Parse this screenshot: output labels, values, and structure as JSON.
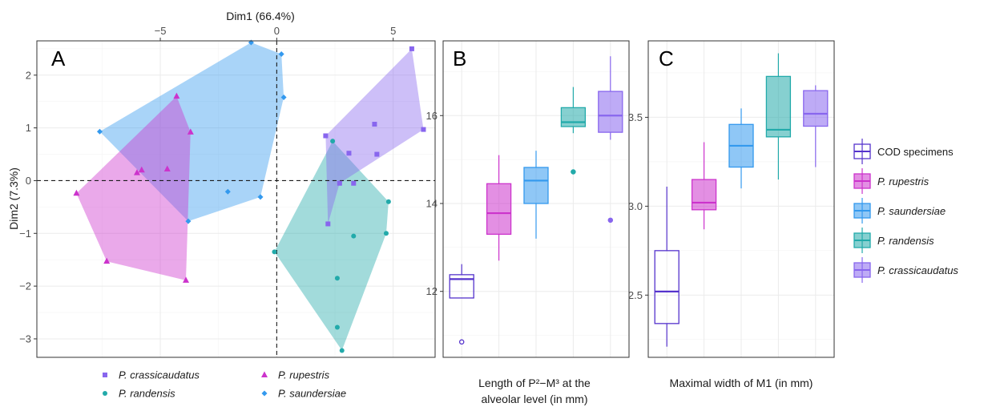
{
  "colors": {
    "cod": "#5533cc",
    "rupestris": "#cc33cc",
    "saundersiae": "#3399ee",
    "randensis": "#22aaaa",
    "crassicaudatus": "#8866ee"
  },
  "chart_data": [
    {
      "panel": "A",
      "type": "scatter",
      "xlabel": "Dim1 (66.4%)",
      "ylabel": "Dim2 (7.3%)",
      "xlim": [
        -10.3,
        6.8
      ],
      "ylim": [
        -3.35,
        2.65
      ],
      "xticks": [
        -5,
        0,
        5
      ],
      "xtick_labels": [
        "−5",
        "0",
        "5"
      ],
      "yticks": [
        2,
        1,
        0,
        -1,
        -2,
        -3
      ],
      "ytick_labels": [
        "2",
        "1",
        "0",
        "−1",
        "−2",
        "−3"
      ],
      "grid": true,
      "reference_lines": [
        0,
        0
      ],
      "legend_position": "bottom",
      "legend_order": [
        "crassicaudatus",
        "rupestris",
        "randensis",
        "saundersiae"
      ],
      "series": [
        {
          "key": "saundersiae",
          "name": "P. saundersiae",
          "marker": "diamond",
          "points": [
            [
              -7.6,
              0.93
            ],
            [
              -1.1,
              2.62
            ],
            [
              0.2,
              2.4
            ],
            [
              0.3,
              1.58
            ],
            [
              -2.1,
              -0.21
            ],
            [
              -0.7,
              -0.31
            ],
            [
              -3.8,
              -0.77
            ]
          ],
          "hull": [
            [
              -7.6,
              0.93
            ],
            [
              -1.1,
              2.62
            ],
            [
              0.2,
              2.4
            ],
            [
              0.3,
              1.58
            ],
            [
              -0.7,
              -0.31
            ],
            [
              -3.8,
              -0.77
            ]
          ]
        },
        {
          "key": "rupestris",
          "name": "P. rupestris",
          "marker": "triangle",
          "points": [
            [
              -4.3,
              1.6
            ],
            [
              -3.7,
              0.92
            ],
            [
              -8.6,
              -0.24
            ],
            [
              -7.3,
              -1.53
            ],
            [
              -3.9,
              -1.89
            ],
            [
              -6.0,
              0.15
            ],
            [
              -5.8,
              0.2
            ],
            [
              -4.7,
              0.22
            ]
          ],
          "hull": [
            [
              -4.3,
              1.6
            ],
            [
              -3.7,
              0.92
            ],
            [
              -3.9,
              -1.89
            ],
            [
              -7.3,
              -1.53
            ],
            [
              -8.6,
              -0.24
            ]
          ]
        },
        {
          "key": "randensis",
          "name": "P. randensis",
          "marker": "circle",
          "points": [
            [
              2.4,
              0.75
            ],
            [
              4.8,
              -0.4
            ],
            [
              4.7,
              -1.0
            ],
            [
              -0.1,
              -1.35
            ],
            [
              3.3,
              -1.05
            ],
            [
              2.6,
              -1.85
            ],
            [
              2.6,
              -2.78
            ],
            [
              2.8,
              -3.22
            ]
          ],
          "hull": [
            [
              2.4,
              0.75
            ],
            [
              4.8,
              -0.4
            ],
            [
              4.7,
              -1.0
            ],
            [
              2.8,
              -3.22
            ],
            [
              -0.1,
              -1.35
            ]
          ]
        },
        {
          "key": "crassicaudatus",
          "name": "P. crassicaudatus",
          "marker": "square",
          "points": [
            [
              5.8,
              2.5
            ],
            [
              6.3,
              0.97
            ],
            [
              4.2,
              1.07
            ],
            [
              4.3,
              0.5
            ],
            [
              2.1,
              0.85
            ],
            [
              3.1,
              0.52
            ],
            [
              2.7,
              -0.05
            ],
            [
              2.2,
              -0.82
            ],
            [
              3.3,
              -0.05
            ]
          ],
          "hull": [
            [
              5.8,
              2.5
            ],
            [
              6.3,
              0.97
            ],
            [
              2.7,
              -0.05
            ],
            [
              2.2,
              -0.82
            ],
            [
              2.1,
              0.85
            ]
          ]
        }
      ]
    },
    {
      "panel": "B",
      "type": "box",
      "xlabel_lines": [
        "Length of P²−M³ at the",
        "alveolar level (in mm)"
      ],
      "ylim": [
        10.5,
        17.7
      ],
      "yticks": [
        12,
        14,
        16
      ],
      "ytick_labels": [
        "12",
        "14",
        "16"
      ],
      "grid": true,
      "boxes": [
        {
          "key": "cod",
          "min": 11.85,
          "q1": 11.85,
          "median": 12.28,
          "q3": 12.38,
          "max": 12.62,
          "outliers": [
            10.85
          ]
        },
        {
          "key": "rupestris",
          "min": 12.7,
          "q1": 13.3,
          "median": 13.78,
          "q3": 14.45,
          "max": 15.1,
          "outliers": []
        },
        {
          "key": "saundersiae",
          "min": 13.2,
          "q1": 14.0,
          "median": 14.52,
          "q3": 14.82,
          "max": 15.2,
          "outliers": []
        },
        {
          "key": "randensis",
          "min": 15.6,
          "q1": 15.75,
          "median": 15.85,
          "q3": 16.18,
          "max": 16.65,
          "outliers": [
            14.72
          ]
        },
        {
          "key": "crassicaudatus",
          "min": 15.45,
          "q1": 15.62,
          "median": 16.0,
          "q3": 16.55,
          "max": 17.35,
          "outliers": [
            13.62
          ]
        }
      ]
    },
    {
      "panel": "C",
      "type": "box",
      "xlabel_lines": [
        "Maximal width of M1 (in mm)"
      ],
      "ylim": [
        2.15,
        3.93
      ],
      "yticks": [
        2.5,
        3.0,
        3.5
      ],
      "ytick_labels": [
        "2.5",
        "3.0",
        "3.5"
      ],
      "grid": true,
      "boxes": [
        {
          "key": "cod",
          "min": 2.21,
          "q1": 2.34,
          "median": 2.52,
          "q3": 2.75,
          "max": 3.11,
          "outliers": []
        },
        {
          "key": "rupestris",
          "min": 2.87,
          "q1": 2.98,
          "median": 3.02,
          "q3": 3.15,
          "max": 3.36,
          "outliers": []
        },
        {
          "key": "saundersiae",
          "min": 3.1,
          "q1": 3.22,
          "median": 3.34,
          "q3": 3.46,
          "max": 3.55,
          "outliers": []
        },
        {
          "key": "randensis",
          "min": 3.15,
          "q1": 3.39,
          "median": 3.43,
          "q3": 3.73,
          "max": 3.86,
          "outliers": []
        },
        {
          "key": "crassicaudatus",
          "min": 3.22,
          "q1": 3.45,
          "median": 3.52,
          "q3": 3.65,
          "max": 3.68,
          "outliers": []
        }
      ]
    }
  ],
  "panel_labels": {
    "a": "A",
    "b": "B",
    "c": "C"
  },
  "legend_a": [
    {
      "key": "crassicaudatus",
      "marker": "square",
      "label": "P. crassicaudatus"
    },
    {
      "key": "rupestris",
      "marker": "triangle",
      "label": "P. rupestris"
    },
    {
      "key": "randensis",
      "marker": "circle",
      "label": "P. randensis"
    },
    {
      "key": "saundersiae",
      "marker": "diamond",
      "label": "P. saundersiae"
    }
  ],
  "legend_bc": [
    {
      "key": "cod",
      "label": "COD specimens",
      "italic": false
    },
    {
      "key": "rupestris",
      "label": "P. rupestris",
      "italic": true
    },
    {
      "key": "saundersiae",
      "label": "P. saundersiae",
      "italic": true
    },
    {
      "key": "randensis",
      "label": "P. randensis",
      "italic": true
    },
    {
      "key": "crassicaudatus",
      "label": "P. crassicaudatus",
      "italic": true
    }
  ]
}
